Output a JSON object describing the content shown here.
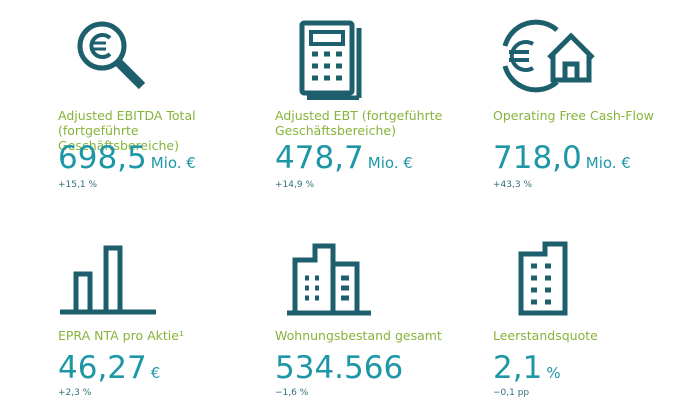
{
  "kpis": [
    {
      "label": "Adjusted EBITDA Total (fortgeführte Geschäftsbereiche)",
      "value": "698,5",
      "unit": "Mio. €",
      "change": "+15,1 %"
    },
    {
      "label": "Adjusted EBT (fortgeführte Geschäftsbereiche)",
      "value": "478,7",
      "unit": "Mio. €",
      "change": "+14,9 %"
    },
    {
      "label": "Operating Free Cash-Flow",
      "value": "718,0",
      "unit": "Mio. €",
      "change": "+43,3 %"
    },
    {
      "label": "EPRA NTA pro Aktie¹",
      "value": "46,27",
      "unit": "€",
      "change": "+2,3 %"
    },
    {
      "label": "Wohnungsbestand gesamt",
      "value": "534.566",
      "unit": null,
      "change": "−1,6 %"
    },
    {
      "label": "Leerstandsquote",
      "value": "2,1",
      "unit": "%",
      "change": "−0,1 pp"
    }
  ]
}
